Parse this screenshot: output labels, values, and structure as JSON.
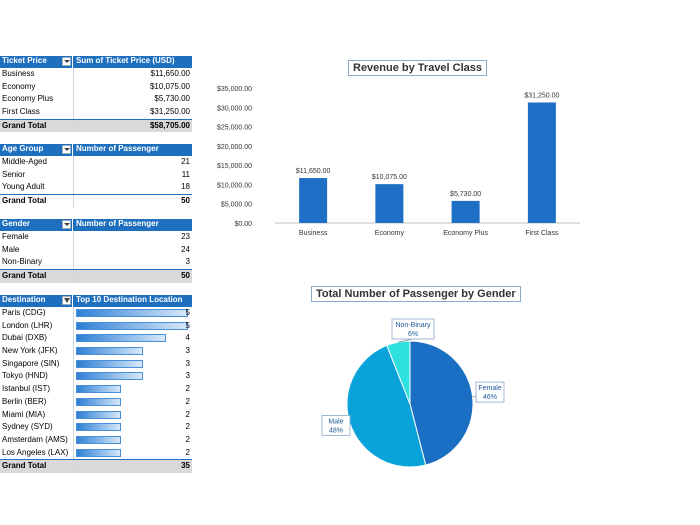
{
  "ticket_table": {
    "col1": "Ticket Price",
    "col2": "Sum of Ticket Price (USD)",
    "rows": [
      {
        "label": "Business",
        "value": "$11,650.00"
      },
      {
        "label": "Economy",
        "value": "$10,075.00"
      },
      {
        "label": "Economy Plus",
        "value": "$5,730.00"
      },
      {
        "label": "First Class",
        "value": "$31,250.00"
      }
    ],
    "total_label": "Grand Total",
    "total_value": "$58,705.00"
  },
  "age_table": {
    "col1": "Age Group",
    "col2": "Number of Passenger",
    "rows": [
      {
        "label": "Middle-Aged",
        "value": "21"
      },
      {
        "label": "Senior",
        "value": "11"
      },
      {
        "label": "Young Adult",
        "value": "18"
      }
    ],
    "total_label": "Grand Total",
    "total_value": "50"
  },
  "gender_table": {
    "col1": "Gender",
    "col2": "Number of Passenger",
    "rows": [
      {
        "label": "Female",
        "value": "23"
      },
      {
        "label": "Male",
        "value": "24"
      },
      {
        "label": "Non-Binary",
        "value": "3"
      }
    ],
    "total_label": "Grand Total",
    "total_value": "50"
  },
  "destination_table": {
    "col1": "Destination",
    "col2": "Top 10 Destination Location",
    "max": 5,
    "rows": [
      {
        "label": "Paris (CDG)",
        "value": "5"
      },
      {
        "label": "London (LHR)",
        "value": "5"
      },
      {
        "label": "Dubai (DXB)",
        "value": "4"
      },
      {
        "label": "New York (JFK)",
        "value": "3"
      },
      {
        "label": "Singapore (SIN)",
        "value": "3"
      },
      {
        "label": "Tokyo (HND)",
        "value": "3"
      },
      {
        "label": "Istanbul (IST)",
        "value": "2"
      },
      {
        "label": "Berlin (BER)",
        "value": "2"
      },
      {
        "label": "Miami (MIA)",
        "value": "2"
      },
      {
        "label": "Sydney (SYD)",
        "value": "2"
      },
      {
        "label": "Amsterdam (AMS)",
        "value": "2"
      },
      {
        "label": "Los Angeles (LAX)",
        "value": "2"
      }
    ],
    "total_label": "Grand Total",
    "total_value": "35"
  },
  "chart_data": [
    {
      "type": "bar",
      "title": "Revenue by Travel Class",
      "categories": [
        "Business",
        "Economy",
        "Economy Plus",
        "First Class"
      ],
      "values": [
        11650,
        10075,
        5730,
        31250
      ],
      "data_labels": [
        "$11,650.00",
        "$10,075.00",
        "$5,730.00",
        "$31,250.00"
      ],
      "ylim": [
        0,
        35000
      ],
      "yticks": [
        "$0.00",
        "$5,000.00",
        "$10,000.00",
        "$15,000.00",
        "$20,000.00",
        "$25,000.00",
        "$30,000.00",
        "$35,000.00"
      ],
      "color": "#1f6fc6",
      "grid": false
    },
    {
      "type": "pie",
      "title": "Total Number of Passenger by Gender",
      "slices": [
        {
          "name": "Female",
          "value": 46,
          "label": "46%",
          "color": "#1a6fc4"
        },
        {
          "name": "Male",
          "value": 48,
          "label": "48%",
          "color": "#0aa3d9"
        },
        {
          "name": "Non-Binary",
          "value": 6,
          "label": "6%",
          "color": "#2ee0e0"
        }
      ]
    }
  ]
}
